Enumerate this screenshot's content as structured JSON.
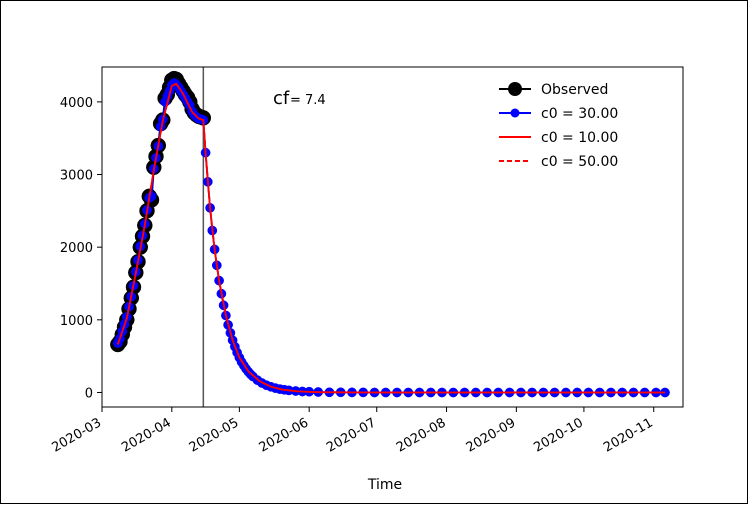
{
  "chart_data": {
    "type": "line",
    "xlabel": "Time",
    "ylabel": "",
    "x_ticks": [
      "2020-03",
      "2020-04",
      "2020-05",
      "2020-06",
      "2020-07",
      "2020-08",
      "2020-09",
      "2020-10",
      "2020-11"
    ],
    "y_ticks": [
      "0",
      "1000",
      "2000",
      "3000",
      "4000"
    ],
    "xlim": [
      "2020-03-01",
      "2020-11-14"
    ],
    "ylim": [
      -200,
      4480
    ],
    "vline": "2020-04-15",
    "annotation": {
      "prefix": "cf",
      "value": "= 7.4"
    },
    "legend_position": "top-right",
    "grid": false,
    "series": [
      {
        "name": "Observed",
        "style": "line-marker",
        "color": "#000000",
        "x": [
          "2020-03-08",
          "2020-03-09",
          "2020-03-10",
          "2020-03-11",
          "2020-03-12",
          "2020-03-13",
          "2020-03-14",
          "2020-03-15",
          "2020-03-16",
          "2020-03-17",
          "2020-03-18",
          "2020-03-19",
          "2020-03-20",
          "2020-03-21",
          "2020-03-22",
          "2020-03-23",
          "2020-03-24",
          "2020-03-25",
          "2020-03-26",
          "2020-03-27",
          "2020-03-28",
          "2020-03-29",
          "2020-03-30",
          "2020-03-31",
          "2020-04-01",
          "2020-04-02",
          "2020-04-03",
          "2020-04-04",
          "2020-04-05",
          "2020-04-06",
          "2020-04-07",
          "2020-04-08",
          "2020-04-09",
          "2020-04-10",
          "2020-04-11",
          "2020-04-12",
          "2020-04-13",
          "2020-04-14",
          "2020-04-15"
        ],
        "y": [
          660,
          700,
          800,
          900,
          1000,
          1150,
          1300,
          1450,
          1650,
          1800,
          2000,
          2150,
          2300,
          2500,
          2700,
          2650,
          3100,
          3250,
          3400,
          3700,
          3750,
          4050,
          4100,
          4200,
          4300,
          4320,
          4310,
          4250,
          4200,
          4150,
          4100,
          4060,
          4000,
          3900,
          3850,
          3820,
          3800,
          3790,
          3780
        ]
      },
      {
        "name": "c0 = 30.00",
        "style": "line-marker",
        "color": "#0000ff",
        "x": [
          "2020-03-08",
          "2020-03-09",
          "2020-03-10",
          "2020-03-11",
          "2020-03-12",
          "2020-03-13",
          "2020-03-14",
          "2020-03-15",
          "2020-03-16",
          "2020-03-17",
          "2020-03-18",
          "2020-03-19",
          "2020-03-20",
          "2020-03-21",
          "2020-03-22",
          "2020-03-23",
          "2020-03-24",
          "2020-03-25",
          "2020-03-26",
          "2020-03-27",
          "2020-03-28",
          "2020-03-29",
          "2020-03-30",
          "2020-03-31",
          "2020-04-01",
          "2020-04-02",
          "2020-04-03",
          "2020-04-04",
          "2020-04-05",
          "2020-04-06",
          "2020-04-07",
          "2020-04-08",
          "2020-04-09",
          "2020-04-10",
          "2020-04-11",
          "2020-04-12",
          "2020-04-13",
          "2020-04-14",
          "2020-04-15",
          "2020-04-16",
          "2020-04-17",
          "2020-04-18",
          "2020-04-19",
          "2020-04-20",
          "2020-04-21",
          "2020-04-22",
          "2020-04-23",
          "2020-04-24",
          "2020-04-25",
          "2020-04-26",
          "2020-04-27",
          "2020-04-28",
          "2020-04-29",
          "2020-04-30",
          "2020-05-01",
          "2020-05-02",
          "2020-05-03",
          "2020-05-04",
          "2020-05-05",
          "2020-05-06",
          "2020-05-07",
          "2020-05-09",
          "2020-05-11",
          "2020-05-13",
          "2020-05-15",
          "2020-05-17",
          "2020-05-19",
          "2020-05-21",
          "2020-05-23",
          "2020-05-26",
          "2020-05-29",
          "2020-06-01",
          "2020-06-05",
          "2020-06-10",
          "2020-06-15",
          "2020-06-20",
          "2020-06-25",
          "2020-06-30",
          "2020-07-05",
          "2020-07-10",
          "2020-07-15",
          "2020-07-20",
          "2020-07-25",
          "2020-07-30",
          "2020-08-04",
          "2020-08-09",
          "2020-08-14",
          "2020-08-19",
          "2020-08-24",
          "2020-08-29",
          "2020-09-03",
          "2020-09-08",
          "2020-09-13",
          "2020-09-18",
          "2020-09-23",
          "2020-09-28",
          "2020-10-03",
          "2020-10-08",
          "2020-10-13",
          "2020-10-18",
          "2020-10-23",
          "2020-10-28",
          "2020-11-02",
          "2020-11-06"
        ],
        "y": [
          680,
          740,
          840,
          940,
          1040,
          1180,
          1320,
          1470,
          1660,
          1820,
          2010,
          2160,
          2320,
          2510,
          2680,
          2700,
          3080,
          3230,
          3390,
          3660,
          3760,
          4000,
          4080,
          4150,
          4230,
          4260,
          4240,
          4200,
          4150,
          4100,
          4050,
          4000,
          3950,
          3870,
          3820,
          3790,
          3770,
          3760,
          3750,
          3300,
          2900,
          2540,
          2230,
          1970,
          1750,
          1540,
          1360,
          1200,
          1060,
          930,
          820,
          720,
          630,
          550,
          480,
          420,
          370,
          325,
          285,
          250,
          220,
          170,
          130,
          100,
          78,
          60,
          47,
          37,
          29,
          20,
          14,
          10,
          6,
          3,
          2,
          1,
          1,
          0,
          0,
          0,
          0,
          0,
          0,
          0,
          0,
          0,
          0,
          0,
          0,
          0,
          0,
          0,
          0,
          0,
          0,
          0,
          0,
          0,
          0,
          0,
          0,
          0,
          0,
          0
        ]
      },
      {
        "name": "c0 = 10.00",
        "style": "solid",
        "color": "#ff0000",
        "x": [
          "2020-03-08",
          "2020-03-12",
          "2020-03-16",
          "2020-03-20",
          "2020-03-24",
          "2020-03-28",
          "2020-04-01",
          "2020-04-03",
          "2020-04-06",
          "2020-04-10",
          "2020-04-13",
          "2020-04-15",
          "2020-04-16",
          "2020-04-18",
          "2020-04-20",
          "2020-04-22",
          "2020-04-25",
          "2020-04-28",
          "2020-05-01",
          "2020-05-05",
          "2020-05-10",
          "2020-05-15",
          "2020-05-20",
          "2020-05-27",
          "2020-06-05",
          "2020-06-20",
          "2020-07-10",
          "2020-08-10",
          "2020-09-10",
          "2020-10-10",
          "2020-11-06"
        ],
        "y": [
          660,
          1020,
          1640,
          2300,
          3060,
          3740,
          4220,
          4250,
          4110,
          3860,
          3770,
          3750,
          3300,
          2540,
          1970,
          1540,
          1060,
          720,
          480,
          290,
          155,
          80,
          40,
          15,
          4,
          1,
          0,
          0,
          0,
          0,
          0
        ]
      },
      {
        "name": "c0 = 50.00",
        "style": "dashed",
        "color": "#ff0000",
        "x": [
          "2020-03-08",
          "2020-03-12",
          "2020-03-16",
          "2020-03-20",
          "2020-03-24",
          "2020-03-28",
          "2020-04-01",
          "2020-04-03",
          "2020-04-06",
          "2020-04-10",
          "2020-04-13",
          "2020-04-15",
          "2020-04-16",
          "2020-04-18",
          "2020-04-20",
          "2020-04-22",
          "2020-04-25",
          "2020-04-28",
          "2020-05-01",
          "2020-05-05",
          "2020-05-10",
          "2020-05-15",
          "2020-05-20",
          "2020-05-27",
          "2020-06-05",
          "2020-06-20",
          "2020-07-10",
          "2020-08-10",
          "2020-09-10",
          "2020-10-10",
          "2020-11-06"
        ],
        "y": [
          660,
          1020,
          1640,
          2300,
          3060,
          3740,
          4220,
          4250,
          4110,
          3860,
          3770,
          3750,
          3300,
          2540,
          1970,
          1540,
          1060,
          720,
          480,
          290,
          155,
          80,
          40,
          15,
          4,
          1,
          0,
          0,
          0,
          0,
          0
        ]
      }
    ]
  }
}
